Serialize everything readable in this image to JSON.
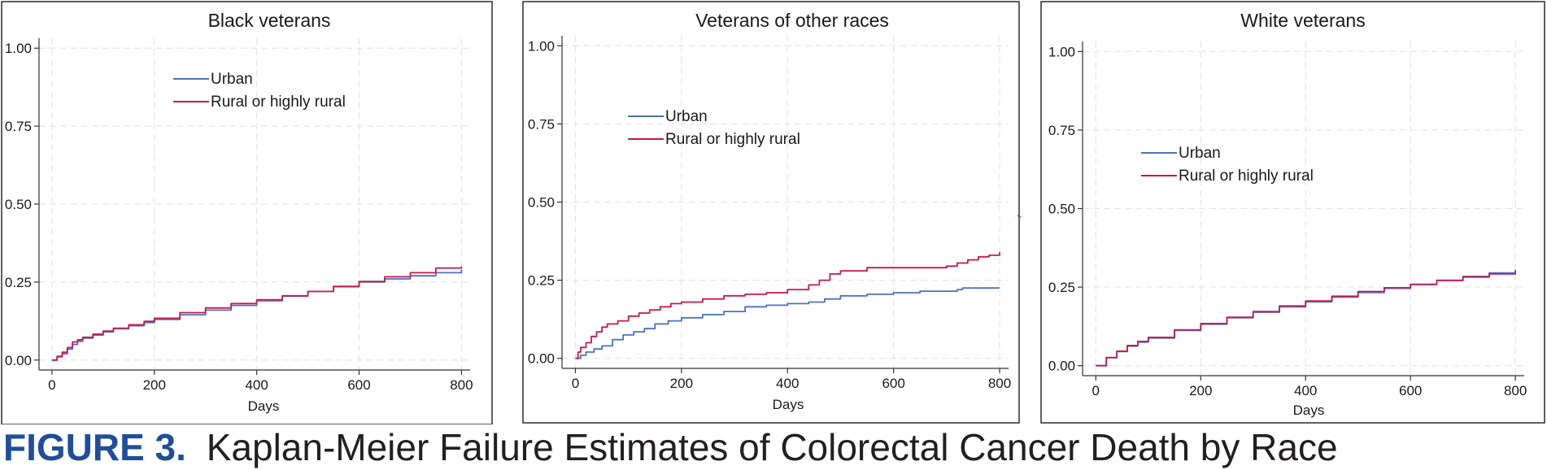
{
  "chart_data": [
    {
      "type": "line",
      "title": "Black veterans",
      "xlabel": "Days",
      "ylabel": "",
      "xlim": [
        0,
        800
      ],
      "ylim": [
        0,
        1
      ],
      "xticks": [
        0,
        200,
        400,
        600,
        800
      ],
      "yticks": [
        0,
        0.25,
        0.5,
        0.75,
        1.0
      ],
      "xtick_labels": [
        "0",
        "200",
        "400",
        "600",
        "800"
      ],
      "ytick_labels": [
        "0.00",
        "0.25",
        "0.50",
        "0.75",
        "1.00"
      ],
      "grid": true,
      "legend": "top-center",
      "series": [
        {
          "name": "Urban",
          "color": "#4a72c4",
          "x": [
            0,
            10,
            20,
            30,
            40,
            50,
            60,
            80,
            100,
            120,
            150,
            180,
            200,
            250,
            300,
            350,
            400,
            450,
            500,
            550,
            600,
            650,
            700,
            750,
            800
          ],
          "y": [
            0,
            0.01,
            0.02,
            0.035,
            0.05,
            0.06,
            0.07,
            0.08,
            0.09,
            0.1,
            0.11,
            0.12,
            0.13,
            0.145,
            0.16,
            0.175,
            0.19,
            0.205,
            0.22,
            0.235,
            0.25,
            0.26,
            0.27,
            0.28,
            0.29
          ]
        },
        {
          "name": "Rural or highly rural",
          "color": "#c8194b",
          "x": [
            0,
            10,
            20,
            30,
            40,
            50,
            60,
            80,
            100,
            120,
            150,
            180,
            200,
            250,
            300,
            350,
            400,
            450,
            500,
            550,
            600,
            650,
            700,
            750,
            800
          ],
          "y": [
            0,
            0.012,
            0.025,
            0.04,
            0.058,
            0.065,
            0.073,
            0.083,
            0.093,
            0.102,
            0.113,
            0.124,
            0.134,
            0.152,
            0.167,
            0.181,
            0.193,
            0.206,
            0.22,
            0.236,
            0.252,
            0.267,
            0.28,
            0.295,
            0.3
          ]
        }
      ]
    },
    {
      "type": "line",
      "title": "Veterans of other races",
      "xlabel": "Days",
      "ylabel": "",
      "xlim": [
        0,
        800
      ],
      "ylim": [
        0,
        1
      ],
      "xticks": [
        0,
        200,
        400,
        600,
        800
      ],
      "yticks": [
        0,
        0.25,
        0.5,
        0.75,
        1.0
      ],
      "xtick_labels": [
        "0",
        "200",
        "400",
        "600",
        "800"
      ],
      "ytick_labels": [
        "0.00",
        "0.25",
        "0.50",
        "0.75",
        "1.00"
      ],
      "grid": true,
      "legend": "upper-left",
      "series": [
        {
          "name": "Urban",
          "color": "#4a72c4",
          "x": [
            0,
            10,
            20,
            35,
            50,
            70,
            90,
            110,
            130,
            150,
            175,
            200,
            240,
            280,
            320,
            360,
            400,
            440,
            470,
            500,
            550,
            600,
            650,
            700,
            720,
            730,
            800
          ],
          "y": [
            0,
            0.01,
            0.02,
            0.03,
            0.04,
            0.06,
            0.075,
            0.085,
            0.095,
            0.11,
            0.12,
            0.13,
            0.14,
            0.15,
            0.165,
            0.17,
            0.175,
            0.18,
            0.19,
            0.2,
            0.205,
            0.21,
            0.215,
            0.215,
            0.22,
            0.225,
            0.225
          ]
        },
        {
          "name": "Rural or highly rural",
          "color": "#c8194b",
          "x": [
            0,
            5,
            10,
            20,
            30,
            40,
            50,
            60,
            80,
            100,
            120,
            140,
            160,
            180,
            200,
            240,
            280,
            320,
            360,
            400,
            440,
            460,
            480,
            500,
            550,
            600,
            650,
            700,
            720,
            740,
            760,
            780,
            800
          ],
          "y": [
            0,
            0.02,
            0.035,
            0.05,
            0.07,
            0.085,
            0.1,
            0.11,
            0.12,
            0.135,
            0.145,
            0.155,
            0.165,
            0.175,
            0.18,
            0.19,
            0.2,
            0.205,
            0.21,
            0.22,
            0.235,
            0.25,
            0.27,
            0.28,
            0.29,
            0.29,
            0.29,
            0.295,
            0.305,
            0.315,
            0.325,
            0.33,
            0.34
          ]
        }
      ]
    },
    {
      "type": "line",
      "title": "White veterans",
      "xlabel": "Days",
      "ylabel": "",
      "xlim": [
        0,
        800
      ],
      "ylim": [
        0,
        1
      ],
      "xticks": [
        0,
        200,
        400,
        600,
        800
      ],
      "yticks": [
        0,
        0.25,
        0.5,
        0.75,
        1.0
      ],
      "xtick_labels": [
        "0",
        "200",
        "400",
        "600",
        "800"
      ],
      "ytick_labels": [
        "0.00",
        "0.25",
        "0.50",
        "0.75",
        "1.00"
      ],
      "grid": true,
      "legend": "middle-left",
      "series": [
        {
          "name": "Urban",
          "color": "#4a72c4",
          "x": [
            0,
            20,
            40,
            60,
            80,
            100,
            150,
            200,
            250,
            300,
            350,
            400,
            450,
            500,
            550,
            600,
            650,
            700,
            750,
            800
          ],
          "y": [
            0,
            0.025,
            0.045,
            0.062,
            0.075,
            0.088,
            0.112,
            0.132,
            0.152,
            0.17,
            0.187,
            0.203,
            0.218,
            0.233,
            0.246,
            0.258,
            0.272,
            0.284,
            0.295,
            0.305
          ]
        },
        {
          "name": "Rural or highly rural",
          "color": "#c8194b",
          "x": [
            0,
            20,
            40,
            60,
            80,
            100,
            150,
            200,
            250,
            300,
            350,
            400,
            450,
            500,
            550,
            600,
            650,
            700,
            750,
            800
          ],
          "y": [
            0,
            0.026,
            0.046,
            0.064,
            0.077,
            0.09,
            0.114,
            0.134,
            0.154,
            0.172,
            0.19,
            0.206,
            0.221,
            0.236,
            0.248,
            0.259,
            0.271,
            0.282,
            0.292,
            0.302
          ]
        }
      ]
    }
  ],
  "caption": {
    "label": "FIGURE 3.",
    "text": "Kaplan-Meier Failure Estimates of Colorectal Cancer Death by Race"
  }
}
